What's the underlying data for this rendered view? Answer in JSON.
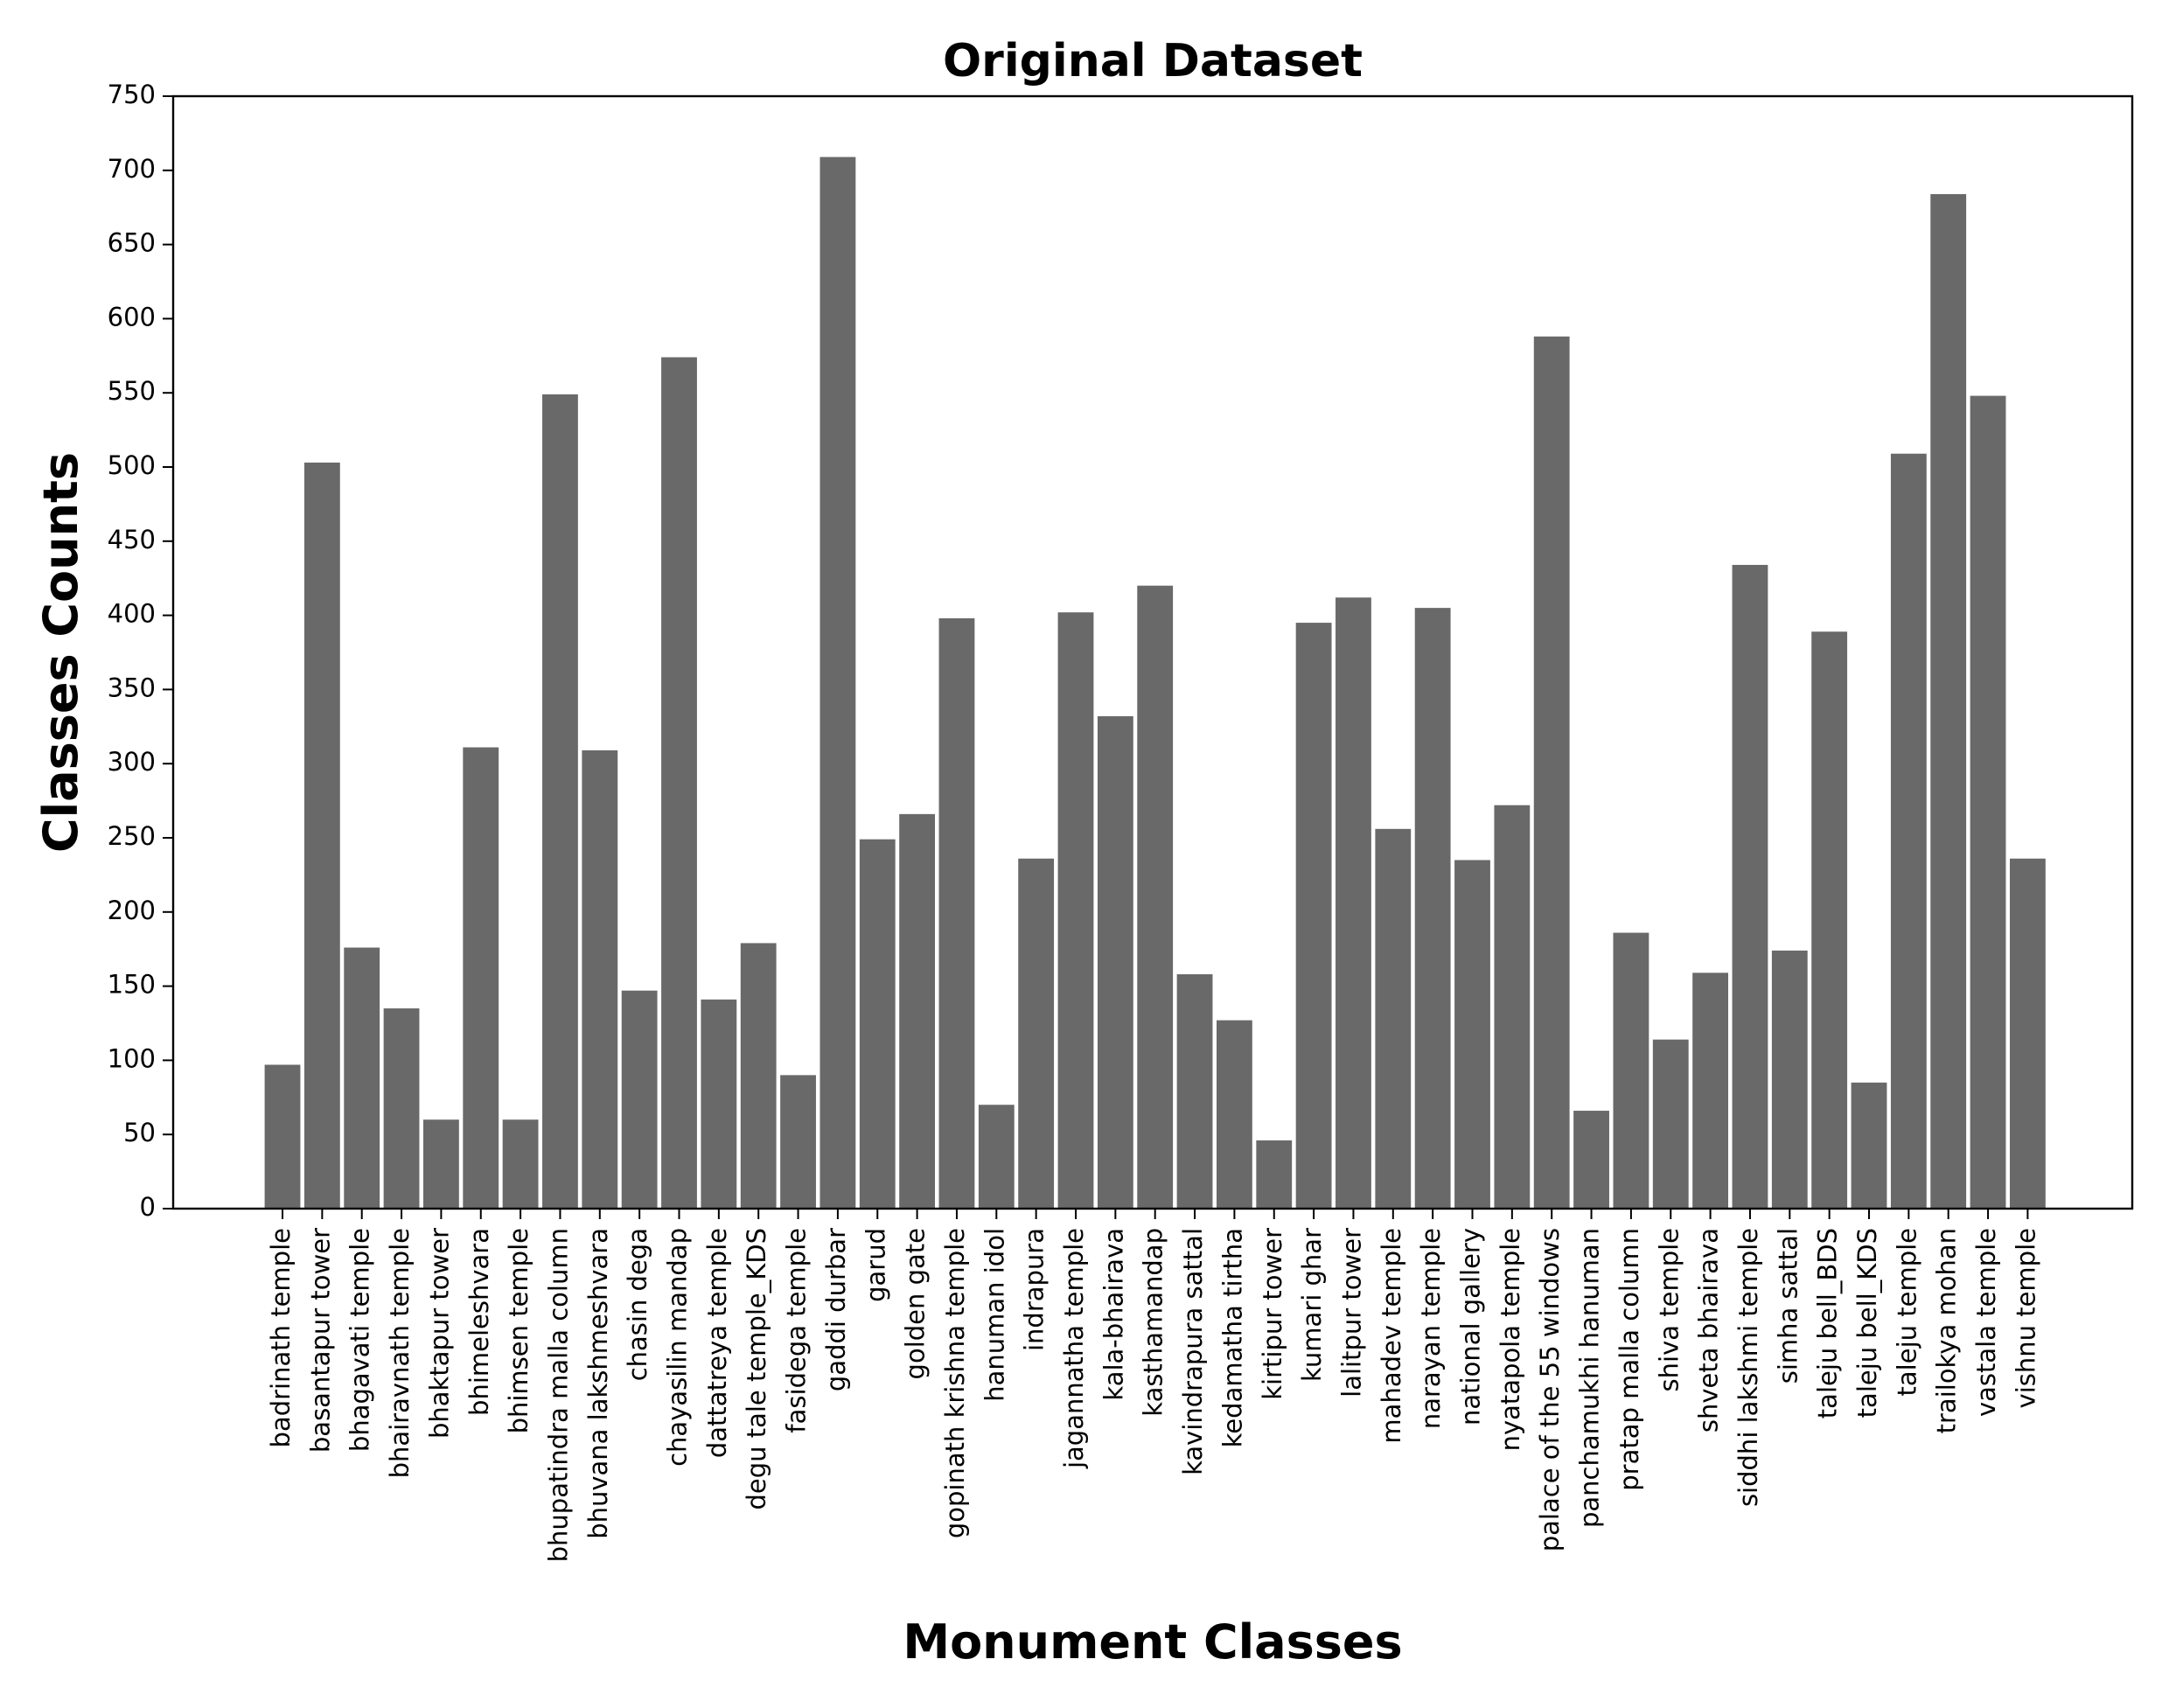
{
  "chart_data": {
    "type": "bar",
    "title": "Original Dataset",
    "xlabel": "Monument Classes",
    "ylabel": "Classes Counts",
    "ylim": [
      0,
      750
    ],
    "yticks": [
      0,
      50,
      100,
      150,
      200,
      250,
      300,
      350,
      400,
      450,
      500,
      550,
      600,
      650,
      700,
      750
    ],
    "bar_color": "#696969",
    "grid": false,
    "categories": [
      "badrinath temple",
      "basantapur tower",
      "bhagavati temple",
      "bhairavnath temple",
      "bhaktapur tower",
      "bhimeleshvara",
      "bhimsen temple",
      "bhupatindra malla column",
      "bhuvana lakshmeshvara",
      "chasin dega",
      "chayasilin mandap",
      "dattatreya temple",
      "degu tale temple_KDS",
      "fasidega temple",
      "gaddi durbar",
      "garud",
      "golden gate",
      "gopinath krishna temple",
      "hanuman idol",
      "indrapura",
      "jagannatha temple",
      "kala-bhairava",
      "kasthamandap",
      "kavindrapura sattal",
      "kedamatha tirtha",
      "kirtipur tower",
      "kumari ghar",
      "lalitpur tower",
      "mahadev temple",
      "narayan temple",
      "national gallery",
      "nyatapola temple",
      "palace of the 55 windows",
      "panchamukhi hanuman",
      "pratap malla column",
      "shiva temple",
      "shveta bhairava",
      "siddhi lakshmi temple",
      "simha sattal",
      "taleju bell_BDS",
      "taleju bell_KDS",
      "taleju temple",
      "trailokya mohan",
      "vastala temple",
      "vishnu temple"
    ],
    "values": [
      97,
      503,
      176,
      135,
      60,
      311,
      60,
      549,
      309,
      147,
      574,
      141,
      179,
      90,
      709,
      249,
      266,
      398,
      70,
      236,
      402,
      332,
      420,
      158,
      127,
      46,
      395,
      412,
      256,
      405,
      235,
      272,
      588,
      66,
      186,
      114,
      159,
      434,
      174,
      389,
      85,
      509,
      684,
      548,
      236
    ]
  }
}
